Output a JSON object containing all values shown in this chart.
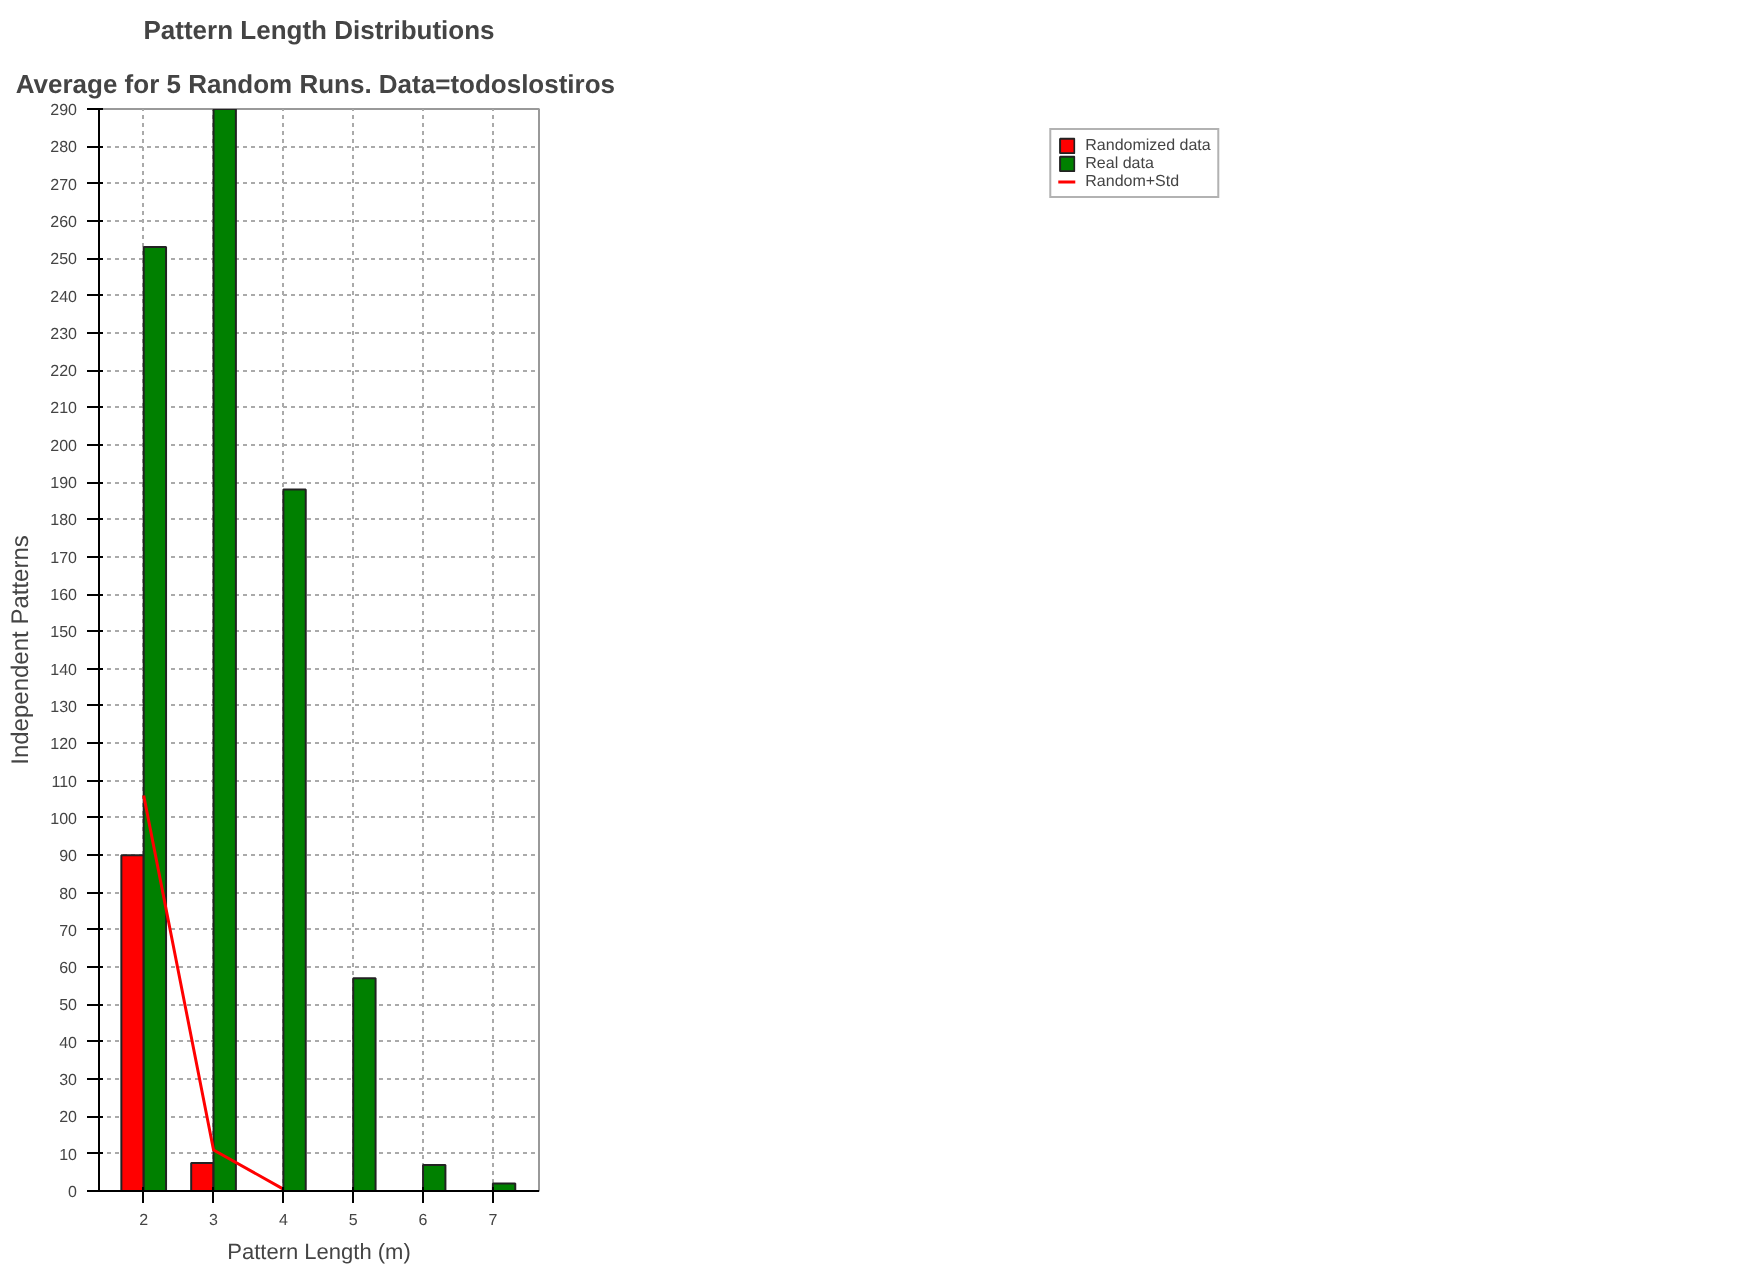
{
  "chart_data": {
    "type": "bar",
    "title": "Pattern Length Distributions",
    "subtitle": "Average for 5 Random Runs.  Data=todoslostiros",
    "xlabel": "Pattern Length (m)",
    "ylabel": "Independent Patterns",
    "x": [
      2,
      3,
      4,
      5,
      6,
      7
    ],
    "series": [
      {
        "name": "Randomized data",
        "color": "#ff0000",
        "values": [
          90,
          7.5,
          null,
          null,
          null,
          null
        ]
      },
      {
        "name": "Real data",
        "color": "#008000",
        "values": [
          253,
          290,
          188,
          57,
          7,
          2
        ]
      },
      {
        "name": "Random+Std",
        "type": "line",
        "color": "#ff0000",
        "x": [
          2,
          3,
          4
        ],
        "values": [
          106,
          11,
          0.5
        ]
      }
    ],
    "xlim": [
      1.36,
      7.66
    ],
    "ylim": [
      0,
      290
    ],
    "xticks": [
      2,
      3,
      4,
      5,
      6,
      7
    ],
    "yticks": [
      0,
      10,
      20,
      30,
      40,
      50,
      60,
      70,
      80,
      90,
      100,
      110,
      120,
      130,
      140,
      150,
      160,
      170,
      180,
      190,
      200,
      210,
      220,
      230,
      240,
      250,
      260,
      270,
      280,
      290
    ],
    "grid": true,
    "legend": "top right"
  }
}
